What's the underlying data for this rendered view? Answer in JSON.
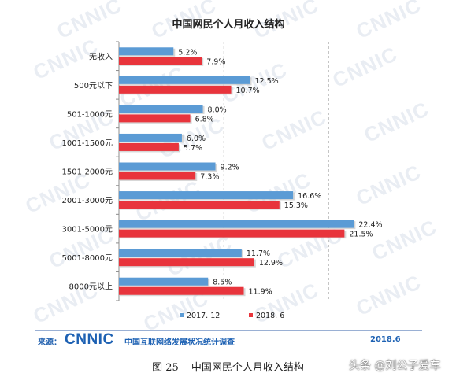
{
  "watermark_text": "CNNIC",
  "chart_data": {
    "type": "bar",
    "orientation": "horizontal",
    "title": "中国网民个人月收入结构",
    "categories": [
      "无收入",
      "500元以下",
      "501-1000元",
      "1001-1500元",
      "1501-2000元",
      "2001-3000元",
      "3001-5000元",
      "5001-8000元",
      "8000元以上"
    ],
    "series": [
      {
        "name": "2017. 12",
        "color": "#5b9bd5",
        "values": [
          5.2,
          12.5,
          8.0,
          6.0,
          9.2,
          16.6,
          22.4,
          11.7,
          8.5
        ],
        "labels": [
          "5.2%",
          "12.5%",
          "8.0%",
          "6.0%",
          "9.2%",
          "16.6%",
          "22.4%",
          "11.7%",
          "8.5%"
        ]
      },
      {
        "name": "2018. 6",
        "color": "#e8343c",
        "values": [
          7.9,
          10.7,
          6.8,
          5.7,
          7.3,
          15.3,
          21.5,
          12.9,
          11.9
        ],
        "labels": [
          "7.9%",
          "10.7%",
          "6.8%",
          "5.7%",
          "7.3%",
          "15.3%",
          "21.5%",
          "12.9%",
          "11.9%"
        ]
      }
    ],
    "xlim": [
      0,
      25
    ],
    "grid": "vertical-dashed",
    "legend_position": "bottom"
  },
  "footer": {
    "source_label": "来源：",
    "brand": "CNNIC",
    "org_name": "中国互联网络发展状况统计调查",
    "date": "2018.6"
  },
  "caption": {
    "figure_number": "图 25",
    "text": "中国网民个人月收入结构"
  },
  "author_watermark": "头条 @刘公子爱车"
}
